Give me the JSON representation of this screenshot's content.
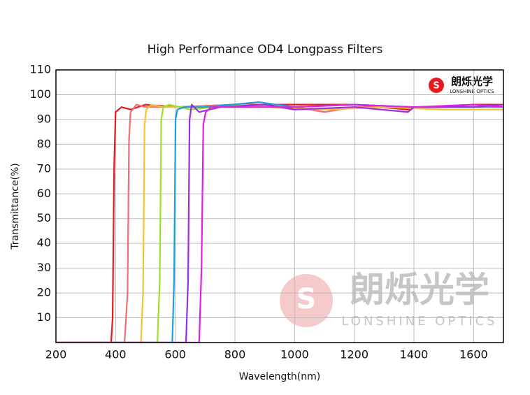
{
  "chart_data": {
    "type": "line",
    "title": "High Performance OD4 Longpass Filters",
    "xlabel": "Wavelength(nm)",
    "ylabel": "Transmittance(%)",
    "logo": {
      "name": "朗烁光学",
      "subtitle": "LONSHINE OPTICS"
    },
    "xlim": [
      200,
      1700
    ],
    "ylim": [
      0,
      110
    ],
    "xticks": [
      200,
      400,
      600,
      800,
      1000,
      1200,
      1400,
      1600
    ],
    "yticks": [
      10,
      20,
      30,
      40,
      50,
      60,
      70,
      80,
      90,
      100,
      110
    ],
    "grid": true,
    "series": [
      {
        "color": "#e8191c",
        "x": [
          200,
          385,
          390,
          395,
          400,
          420,
          450,
          500,
          600,
          800,
          1000,
          1200,
          1380,
          1400,
          1500,
          1600,
          1700
        ],
        "values": [
          0,
          0,
          10,
          70,
          93,
          95,
          94,
          96,
          95,
          96,
          96,
          96,
          94,
          95,
          95,
          96,
          96
        ]
      },
      {
        "color": "#f07070",
        "x": [
          200,
          430,
          440,
          445,
          450,
          470,
          500,
          600,
          800,
          1000,
          1100,
          1200,
          1400,
          1600,
          1700
        ],
        "values": [
          0,
          0,
          20,
          82,
          93,
          96,
          95,
          95,
          96,
          95,
          93,
          95,
          95,
          95,
          96
        ]
      },
      {
        "color": "#f5c230",
        "x": [
          200,
          485,
          492,
          497,
          503,
          520,
          560,
          700,
          900,
          1100,
          1300,
          1500,
          1700
        ],
        "values": [
          0,
          0,
          20,
          88,
          94,
          96,
          95,
          95,
          95,
          94,
          95,
          94,
          94
        ]
      },
      {
        "color": "#9be02a",
        "x": [
          200,
          540,
          548,
          553,
          560,
          580,
          650,
          800,
          1000,
          1200,
          1400,
          1700
        ],
        "values": [
          0,
          0,
          25,
          90,
          95,
          96,
          94,
          96,
          95,
          96,
          95,
          95
        ]
      },
      {
        "color": "#1aa0e0",
        "x": [
          200,
          590,
          596,
          601,
          607,
          630,
          700,
          880,
          1000,
          1200,
          1400,
          1700
        ],
        "values": [
          0,
          0,
          25,
          90,
          94,
          95,
          95,
          97,
          95,
          96,
          95,
          95
        ]
      },
      {
        "color": "#9a2ee0",
        "x": [
          200,
          636,
          643,
          648,
          655,
          680,
          750,
          900,
          1000,
          1200,
          1380,
          1400,
          1600,
          1700
        ],
        "values": [
          0,
          0,
          25,
          90,
          96,
          93,
          95,
          96,
          94,
          95,
          93,
          95,
          95,
          96
        ]
      },
      {
        "color": "#e020e8",
        "x": [
          200,
          680,
          688,
          694,
          702,
          720,
          800,
          1000,
          1200,
          1400,
          1600,
          1700
        ],
        "values": [
          0,
          0,
          30,
          88,
          93,
          95,
          95,
          95,
          96,
          95,
          96,
          95
        ]
      }
    ]
  }
}
